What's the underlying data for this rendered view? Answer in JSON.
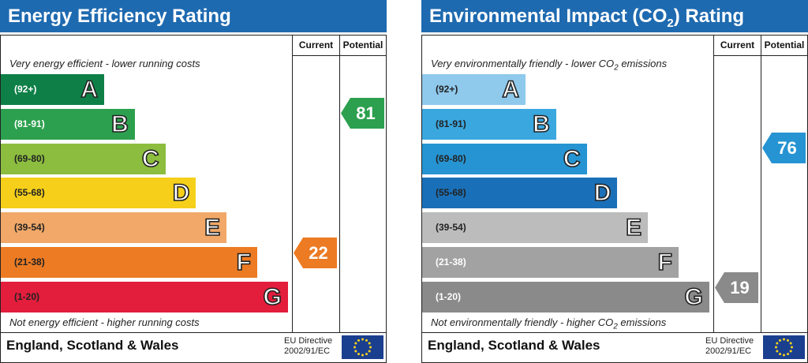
{
  "chart_data": [
    {
      "type": "bar",
      "title": "Energy Efficiency Rating",
      "columns": [
        "Current",
        "Potential"
      ],
      "top_note": "Very energy efficient - lower running costs",
      "bottom_note": "Not energy efficient - higher running costs",
      "categories": [
        "A",
        "B",
        "C",
        "D",
        "E",
        "F",
        "G"
      ],
      "ranges": [
        "(92+)",
        "(81-91)",
        "(69-80)",
        "(55-68)",
        "(39-54)",
        "(21-38)",
        "(1-20)"
      ],
      "colors": [
        "#0e8047",
        "#2ca04e",
        "#8cbd3f",
        "#f5cf1a",
        "#f1a868",
        "#ec7b23",
        "#e31d3c"
      ],
      "range_text_colors": [
        "#ffffff",
        "#ffffff",
        "#222222",
        "#222222",
        "#222222",
        "#222222",
        "#222222"
      ],
      "current": {
        "value": 22,
        "band": "F",
        "color": "#ec7b23"
      },
      "potential": {
        "value": 81,
        "band": "B",
        "color": "#2ca04e"
      },
      "footer": "England, Scotland & Wales",
      "directive_line1": "EU Directive",
      "directive_line2": "2002/91/EC"
    },
    {
      "type": "bar",
      "title_main": "Environmental Impact (CO",
      "title_sub": "2",
      "title_end": ") Rating",
      "columns": [
        "Current",
        "Potential"
      ],
      "top_note_main": "Very environmentally friendly - lower CO",
      "top_note_sub": "2",
      "top_note_end": " emissions",
      "bottom_note_main": "Not environmentally friendly - higher CO",
      "bottom_note_sub": "2",
      "bottom_note_end": " emissions",
      "categories": [
        "A",
        "B",
        "C",
        "D",
        "E",
        "F",
        "G"
      ],
      "ranges": [
        "(92+)",
        "(81-91)",
        "(69-80)",
        "(55-68)",
        "(39-54)",
        "(21-38)",
        "(1-20)"
      ],
      "colors": [
        "#8fc9ec",
        "#3aa7df",
        "#2694d2",
        "#1a70b8",
        "#bcbcbc",
        "#a2a2a2",
        "#8a8a8a"
      ],
      "range_text_colors": [
        "#222222",
        "#222222",
        "#222222",
        "#222222",
        "#222222",
        "#ffffff",
        "#ffffff"
      ],
      "current": {
        "value": 19,
        "band": "G",
        "color": "#8a8a8a"
      },
      "potential": {
        "value": 76,
        "band": "C",
        "color": "#2694d2"
      },
      "footer": "England, Scotland & Wales",
      "directive_line1": "EU Directive",
      "directive_line2": "2002/91/EC"
    }
  ]
}
